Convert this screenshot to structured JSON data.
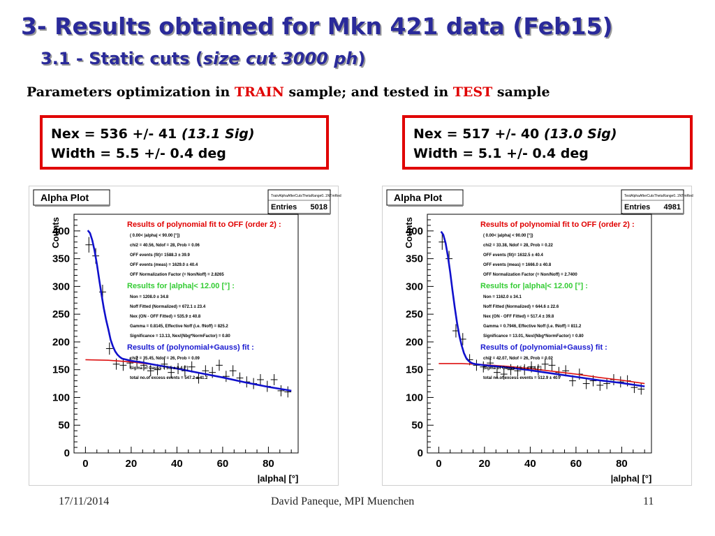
{
  "slide": {
    "title": "3- Results obtained for Mkn 421 data (Feb15)",
    "subtitle_prefix": "3.1 - Static cuts (",
    "subtitle_italic": "size cut 3000 ph",
    "subtitle_suffix": ")",
    "params_prefix": "Parameters optimization in ",
    "params_train": "TRAIN",
    "params_mid": " sample; and tested in ",
    "params_test": "TEST",
    "params_suffix": " sample",
    "colors": {
      "title": "#2a2a9a",
      "red": "#e00000",
      "fit_blue": "#1010cc",
      "fit_red": "#dd1111"
    }
  },
  "results": [
    {
      "nex": "Nex = 536 +/-  41 ",
      "sig": "(13.1 Sig)",
      "width": "Width = 5.5 +/- 0.4 deg"
    },
    {
      "nex": "Nex = 517 +/-  40 ",
      "sig": "(13.0 Sig)",
      "width": "Width = 5.1 +/- 0.4 deg"
    }
  ],
  "footer": {
    "date": "17/11/2014",
    "author": "David Paneque, MPI Muenchen",
    "page": "11"
  },
  "chart_data": [
    {
      "type": "scatter",
      "title": "Alpha Plot",
      "xlabel": "|alpha|  [°]",
      "ylabel": "Counts",
      "xlim": [
        -5,
        93
      ],
      "ylim": [
        0,
        430
      ],
      "xticks": [
        "0",
        "20",
        "40",
        "60",
        "80"
      ],
      "yticks": [
        "0",
        "50",
        "100",
        "150",
        "200",
        "250",
        "300",
        "350",
        "400"
      ],
      "stats": {
        "name": "TrainAlphaAfterCutsThetaRange0..1NTmRed",
        "entries_label": "Entries",
        "entries": "5018"
      },
      "annotation": {
        "poly_title": "Results of polynomial fit to OFF (order  2) :",
        "poly_lines": [
          "(  0.00< |alpha| < 90.00 [°])",
          "chi2 =   40.56,  Ndof =   28,  Prob =   0.06",
          "OFF events (fit)=   1588.3 ±     39.9",
          "OFF events (meas) =   1629.0 ±     40.4",
          "OFF Normalization Factor (= Non/Noff) = 2.8265"
        ],
        "alpha_title": "Results for |alpha|<  12.00 [°] :",
        "alpha_lines": [
          "Non =   1208.0 ±     34.8",
          "Noff Fitted (Normalized) =    672.1 ±     23.4",
          "Nex (ON - OFF Fitted) =    535.9 ±     40.8",
          "Gamma = 0.8145,   Effective Noff (i.e. fNoff) =  825.2",
          "Significance =  13.13,    Nex/(Nbg*NormFactor) =  0.80"
        ],
        "gauss_title": "Results of (polynomial+Gauss) fit  :",
        "gauss_lines": [
          "chi2 =   35.45,  Ndof =   26,  Prob =   0.09",
          "Sigma of Gauss  =    5.5 ±    0.4 [°]",
          "total no.of excess events =    547.2 ±     41.2"
        ]
      },
      "points": [
        {
          "x": 1.5,
          "y": 375,
          "ey": 14,
          "ex": 1.5
        },
        {
          "x": 4.5,
          "y": 355,
          "ey": 14,
          "ex": 1.5
        },
        {
          "x": 7.5,
          "y": 290,
          "ey": 13,
          "ex": 1.5
        },
        {
          "x": 10.5,
          "y": 188,
          "ey": 11,
          "ex": 1.5
        },
        {
          "x": 13.5,
          "y": 160,
          "ey": 10,
          "ex": 1.5
        },
        {
          "x": 16.5,
          "y": 158,
          "ey": 10,
          "ex": 1.5
        },
        {
          "x": 19.5,
          "y": 162,
          "ey": 10,
          "ex": 1.5
        },
        {
          "x": 22.5,
          "y": 165,
          "ey": 10,
          "ex": 1.5
        },
        {
          "x": 25.5,
          "y": 158,
          "ey": 10,
          "ex": 1.5
        },
        {
          "x": 28.5,
          "y": 148,
          "ey": 10,
          "ex": 1.5
        },
        {
          "x": 31.5,
          "y": 150,
          "ey": 10,
          "ex": 1.5
        },
        {
          "x": 34.5,
          "y": 160,
          "ey": 10,
          "ex": 1.5
        },
        {
          "x": 37.5,
          "y": 145,
          "ey": 10,
          "ex": 1.5
        },
        {
          "x": 40.5,
          "y": 152,
          "ey": 10,
          "ex": 1.5
        },
        {
          "x": 43.5,
          "y": 148,
          "ey": 10,
          "ex": 1.5
        },
        {
          "x": 46.5,
          "y": 155,
          "ey": 10,
          "ex": 1.5
        },
        {
          "x": 49.5,
          "y": 135,
          "ey": 10,
          "ex": 1.5
        },
        {
          "x": 52.5,
          "y": 148,
          "ey": 10,
          "ex": 1.5
        },
        {
          "x": 55.5,
          "y": 145,
          "ey": 10,
          "ex": 1.5
        },
        {
          "x": 58.5,
          "y": 158,
          "ey": 10,
          "ex": 1.5
        },
        {
          "x": 61.5,
          "y": 138,
          "ey": 10,
          "ex": 1.5
        },
        {
          "x": 64.5,
          "y": 148,
          "ey": 10,
          "ex": 1.5
        },
        {
          "x": 67.5,
          "y": 135,
          "ey": 10,
          "ex": 1.5
        },
        {
          "x": 70.5,
          "y": 128,
          "ey": 10,
          "ex": 1.5
        },
        {
          "x": 73.5,
          "y": 125,
          "ey": 10,
          "ex": 1.5
        },
        {
          "x": 76.5,
          "y": 132,
          "ey": 10,
          "ex": 1.5
        },
        {
          "x": 79.5,
          "y": 120,
          "ey": 10,
          "ex": 1.5
        },
        {
          "x": 82.5,
          "y": 132,
          "ey": 10,
          "ex": 1.5
        },
        {
          "x": 85.5,
          "y": 112,
          "ey": 10,
          "ex": 1.5
        },
        {
          "x": 88.5,
          "y": 110,
          "ey": 10,
          "ex": 1.5
        }
      ],
      "fits": [
        {
          "name": "polynomial (OFF) fit",
          "color": "#dd1111",
          "x": [
            0,
            10,
            20,
            30,
            40,
            50,
            60,
            70,
            80,
            90
          ],
          "y": [
            168,
            167,
            164,
            159,
            152,
            144,
            136,
            127,
            119,
            112
          ]
        },
        {
          "name": "polynomial+Gauss fit",
          "color": "#1010cc",
          "x": [
            1,
            2,
            3,
            4,
            5,
            6,
            7,
            8,
            9,
            10,
            11,
            12,
            13,
            14,
            15,
            16,
            17,
            18,
            20,
            25,
            30,
            40,
            50,
            60,
            70,
            80,
            90
          ],
          "y": [
            401,
            396,
            383,
            364,
            340,
            313,
            286,
            261,
            240,
            223,
            204,
            192,
            183,
            177,
            173,
            170,
            169,
            168,
            166,
            163,
            159,
            152,
            144,
            136,
            127,
            119,
            112
          ]
        }
      ]
    },
    {
      "type": "scatter",
      "title": "Alpha Plot",
      "xlabel": "|alpha|  [°]",
      "ylabel": "Counts",
      "xlim": [
        -5,
        93
      ],
      "ylim": [
        0,
        430
      ],
      "xticks": [
        "0",
        "20",
        "40",
        "60",
        "80"
      ],
      "yticks": [
        "0",
        "50",
        "100",
        "150",
        "200",
        "250",
        "300",
        "350",
        "400"
      ],
      "stats": {
        "name": "TestAlphaAfterCutsThetaRange0..1NTmRed",
        "entries_label": "Entries",
        "entries": "4981"
      },
      "annotation": {
        "poly_title": "Results of polynomial fit to OFF (order  2) :",
        "poly_lines": [
          "(  0.00< |alpha| < 90.00 [°])",
          "chi2 =   33.38,  Ndof =   28,  Prob =   0.22",
          "OFF events (fit)=   1632.5 ±     40.4",
          "OFF events (meas) =   1666.0 ±     40.8",
          "OFF Normalization Factor (= Non/Noff) = 2.7400"
        ],
        "alpha_title": "Results for |alpha|<  12.00 [°] :",
        "alpha_lines": [
          "Non =   1162.0 ±     34.1",
          "Noff Fitted (Normalized) =    644.6 ±     22.6",
          "Nex (ON - OFF Fitted) =    517.4 ±     39.8",
          "Gamma = 0.7946,   Effective Noff (i.e. fNoff) =  811.2",
          "Significance =  13.01,    Nex/(Nbg*NormFactor) =  0.80"
        ],
        "gauss_title": "Results of (polynomial+Gauss) fit  :",
        "gauss_lines": [
          "chi2 =   42.07,  Ndof =   26,  Prob =   0.02",
          "Sigma of Gauss  =    5.1 ±    0.4 [°]",
          "total no.of excess events =    512.9 ±     40.7"
        ]
      },
      "points": [
        {
          "x": 1.5,
          "y": 380,
          "ey": 14,
          "ex": 1.5
        },
        {
          "x": 4.5,
          "y": 350,
          "ey": 14,
          "ex": 1.5
        },
        {
          "x": 7.5,
          "y": 220,
          "ey": 12,
          "ex": 1.5
        },
        {
          "x": 10.5,
          "y": 205,
          "ey": 11,
          "ex": 1.5
        },
        {
          "x": 13.5,
          "y": 168,
          "ey": 10,
          "ex": 1.5
        },
        {
          "x": 16.5,
          "y": 158,
          "ey": 10,
          "ex": 1.5
        },
        {
          "x": 19.5,
          "y": 155,
          "ey": 10,
          "ex": 1.5
        },
        {
          "x": 22.5,
          "y": 162,
          "ey": 10,
          "ex": 1.5
        },
        {
          "x": 25.5,
          "y": 145,
          "ey": 10,
          "ex": 1.5
        },
        {
          "x": 28.5,
          "y": 142,
          "ey": 10,
          "ex": 1.5
        },
        {
          "x": 31.5,
          "y": 150,
          "ey": 10,
          "ex": 1.5
        },
        {
          "x": 34.5,
          "y": 148,
          "ey": 10,
          "ex": 1.5
        },
        {
          "x": 37.5,
          "y": 150,
          "ey": 10,
          "ex": 1.5
        },
        {
          "x": 40.5,
          "y": 155,
          "ey": 10,
          "ex": 1.5
        },
        {
          "x": 43.5,
          "y": 150,
          "ey": 10,
          "ex": 1.5
        },
        {
          "x": 46.5,
          "y": 160,
          "ey": 10,
          "ex": 1.5
        },
        {
          "x": 49.5,
          "y": 158,
          "ey": 10,
          "ex": 1.5
        },
        {
          "x": 52.5,
          "y": 145,
          "ey": 10,
          "ex": 1.5
        },
        {
          "x": 55.5,
          "y": 148,
          "ey": 10,
          "ex": 1.5
        },
        {
          "x": 58.5,
          "y": 130,
          "ey": 10,
          "ex": 1.5
        },
        {
          "x": 61.5,
          "y": 142,
          "ey": 10,
          "ex": 1.5
        },
        {
          "x": 64.5,
          "y": 125,
          "ey": 10,
          "ex": 1.5
        },
        {
          "x": 67.5,
          "y": 130,
          "ey": 10,
          "ex": 1.5
        },
        {
          "x": 70.5,
          "y": 122,
          "ey": 10,
          "ex": 1.5
        },
        {
          "x": 73.5,
          "y": 125,
          "ey": 10,
          "ex": 1.5
        },
        {
          "x": 76.5,
          "y": 132,
          "ey": 10,
          "ex": 1.5
        },
        {
          "x": 79.5,
          "y": 128,
          "ey": 10,
          "ex": 1.5
        },
        {
          "x": 82.5,
          "y": 130,
          "ey": 10,
          "ex": 1.5
        },
        {
          "x": 85.5,
          "y": 118,
          "ey": 10,
          "ex": 1.5
        },
        {
          "x": 88.5,
          "y": 115,
          "ey": 10,
          "ex": 1.5
        }
      ],
      "fits": [
        {
          "name": "polynomial (OFF) fit",
          "color": "#dd1111",
          "x": [
            0,
            10,
            20,
            30,
            40,
            50,
            60,
            70,
            80,
            90
          ],
          "y": [
            161,
            161,
            159,
            156,
            152,
            147,
            142,
            136,
            131,
            125
          ]
        },
        {
          "name": "polynomial+Gauss fit",
          "color": "#1010cc",
          "x": [
            1,
            2,
            3,
            4,
            5,
            6,
            7,
            8,
            9,
            10,
            11,
            12,
            13,
            14,
            15,
            16,
            18,
            20,
            25,
            30,
            40,
            50,
            60,
            70,
            80,
            90
          ],
          "y": [
            399,
            393,
            378,
            354,
            325,
            293,
            262,
            234,
            211,
            194,
            180,
            171,
            166,
            163,
            161,
            160,
            159,
            158,
            156,
            154,
            149,
            143,
            137,
            131,
            126,
            120
          ]
        }
      ]
    }
  ]
}
